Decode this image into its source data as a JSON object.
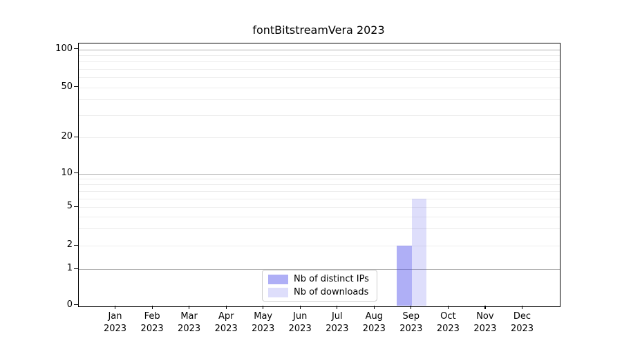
{
  "chart_data": {
    "type": "bar",
    "title": "fontBitstreamVera 2023",
    "x_month_labels": [
      "Jan",
      "Feb",
      "Mar",
      "Apr",
      "May",
      "Jun",
      "Jul",
      "Aug",
      "Sep",
      "Oct",
      "Nov",
      "Dec"
    ],
    "x_year_label": "2023",
    "categories": [
      "Jan 2023",
      "Feb 2023",
      "Mar 2023",
      "Apr 2023",
      "May 2023",
      "Jun 2023",
      "Jul 2023",
      "Aug 2023",
      "Sep 2023",
      "Oct 2023",
      "Nov 2023",
      "Dec 2023"
    ],
    "series": [
      {
        "name": "Nb of distinct IPs",
        "fill": "rgba(80,80,235,0.46)",
        "solid_hex": "#aeaef4",
        "values": [
          0,
          0,
          0,
          0,
          0,
          0,
          0,
          0,
          2,
          0,
          0,
          0
        ]
      },
      {
        "name": "Nb of downloads",
        "fill": "rgba(80,80,235,0.19)",
        "solid_hex": "#dcdcf9",
        "values": [
          0,
          0,
          0,
          0,
          0,
          0,
          0,
          0,
          6,
          0,
          0,
          0
        ]
      }
    ],
    "y_tick_labels": [
      "0",
      "1",
      "2",
      "5",
      "10",
      "20",
      "50",
      "100"
    ],
    "y_tick_values": [
      0,
      1,
      2,
      5,
      10,
      20,
      50,
      100
    ],
    "y_major_gridline_values": [
      1,
      10,
      100
    ],
    "y_minor_gridline_values": [
      2,
      3,
      4,
      5,
      6,
      7,
      8,
      9,
      20,
      30,
      40,
      50,
      60,
      70,
      80,
      90
    ],
    "ylim": [
      0,
      100
    ],
    "y_scale": "asinh-like",
    "grid": true,
    "legend": {
      "position": "lower-center-inside",
      "entries": [
        "Nb of distinct IPs",
        "Nb of downloads"
      ]
    },
    "colors": {
      "major_grid": "#b0b0b0",
      "minor_grid": "#ededed",
      "axis": "#000000",
      "background": "#ffffff"
    }
  }
}
